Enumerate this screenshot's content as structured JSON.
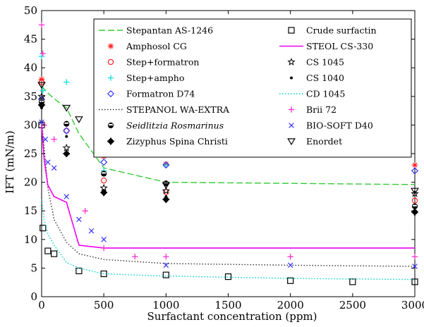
{
  "chart_data": {
    "type": "scatter",
    "xlabel": "Surfactant concentration (ppm)",
    "ylabel": "IFT (mN/m)",
    "xlim": [
      0,
      3000
    ],
    "ylim": [
      0,
      50
    ],
    "xticks": [
      0,
      500,
      1000,
      1500,
      2000,
      2500,
      3000
    ],
    "yticks": [
      0,
      5,
      10,
      15,
      20,
      25,
      30,
      35,
      40,
      45,
      50
    ],
    "grid": false,
    "legend_position": "top-right",
    "series": [
      {
        "name": "Stepantan AS-1246",
        "kind": "line",
        "style": "dashed",
        "color": "#33cc33",
        "x": [
          0,
          20,
          50,
          100,
          200,
          300,
          500,
          1000,
          2000,
          3000
        ],
        "y": [
          36.8,
          36.3,
          35.6,
          34.6,
          33.0,
          28.5,
          22.5,
          20.0,
          19.8,
          19.6
        ]
      },
      {
        "name": "Amphosol CG",
        "kind": "marker",
        "marker": "asterisk",
        "color": "#ff2222",
        "x": [
          0,
          500,
          1000,
          3000
        ],
        "y": [
          38.0,
          24.5,
          23.2,
          23.0
        ]
      },
      {
        "name": "Step+formatron",
        "kind": "marker",
        "marker": "circle-open",
        "color": "#ff2222",
        "x": [
          0,
          200,
          500,
          1000,
          3000
        ],
        "y": [
          37.5,
          29.0,
          20.3,
          18.3,
          16.8
        ]
      },
      {
        "name": "Step+ampho",
        "kind": "marker",
        "marker": "plus",
        "color": "#00dddd",
        "x": [
          0,
          10,
          200,
          500,
          1000
        ],
        "y": [
          42.0,
          36.0,
          37.5,
          22.0,
          23.0
        ]
      },
      {
        "name": "Formatron D74",
        "kind": "marker",
        "marker": "diamond-open",
        "color": "#3333ff",
        "x": [
          0,
          200,
          500,
          1000,
          3000
        ],
        "y": [
          34.5,
          29.0,
          23.5,
          23.0,
          22.0
        ]
      },
      {
        "name": "STEPANOL WA-EXTRA",
        "kind": "line",
        "style": "dotted",
        "color": "#333333",
        "x": [
          0,
          50,
          100,
          200,
          300,
          500,
          1000,
          2000,
          3000
        ],
        "y": [
          31.0,
          19.0,
          13.5,
          9.5,
          7.5,
          6.5,
          5.8,
          5.5,
          5.3
        ]
      },
      {
        "name": "Seidlitzia Rosmarinus",
        "kind": "marker",
        "marker": "half-filled-circle",
        "color": "#000000",
        "italic": true,
        "x": [
          0,
          200,
          500,
          1000,
          3000
        ],
        "y": [
          34.0,
          30.2,
          21.5,
          19.8,
          15.8
        ]
      },
      {
        "name": "Zizyphus Spina Christi",
        "kind": "marker",
        "marker": "filled-club",
        "color": "#000000",
        "x": [
          0,
          200,
          500,
          1000,
          3000
        ],
        "y": [
          33.5,
          25.0,
          18.2,
          17.0,
          14.8
        ]
      },
      {
        "name": "Crude surfactin",
        "kind": "marker",
        "marker": "square-open",
        "color": "#000000",
        "x": [
          0,
          10,
          50,
          100,
          300,
          500,
          1000,
          1500,
          2000,
          2500,
          3000
        ],
        "y": [
          30.0,
          12.0,
          8.0,
          7.5,
          4.5,
          4.0,
          3.8,
          3.5,
          2.8,
          2.6,
          2.6
        ]
      },
      {
        "name": "STEOL CS-330",
        "kind": "line",
        "style": "solid",
        "color": "#ee00ee",
        "x": [
          0,
          20,
          50,
          100,
          200,
          300,
          500,
          1000,
          2000,
          3000
        ],
        "y": [
          30.0,
          24.0,
          19.5,
          17.5,
          16.5,
          9.0,
          8.5,
          8.5,
          8.5,
          8.5
        ]
      },
      {
        "name": "CS 1045",
        "kind": "marker",
        "marker": "star-open",
        "color": "#000000",
        "x": [
          0,
          200,
          500,
          1000,
          3000
        ],
        "y": [
          35.0,
          26.0,
          19.0,
          18.5,
          18.0
        ]
      },
      {
        "name": "CS 1040",
        "kind": "marker",
        "marker": "dot",
        "color": "#000000",
        "x": [
          0,
          200,
          500,
          1000,
          3000
        ],
        "y": [
          33.0,
          28.0,
          18.5,
          17.5,
          15.0
        ]
      },
      {
        "name": "CD 1045",
        "kind": "line",
        "style": "dotted",
        "color": "#00cccc",
        "x": [
          0,
          20,
          50,
          100,
          200,
          300,
          500,
          1000,
          2000,
          3000
        ],
        "y": [
          17.0,
          13.5,
          11.0,
          9.0,
          6.0,
          5.0,
          4.0,
          3.6,
          3.2,
          3.0
        ]
      },
      {
        "name": "Brii 72",
        "kind": "marker",
        "marker": "plus",
        "color": "#ff22cc",
        "x": [
          0,
          10,
          20,
          100,
          350,
          500,
          750,
          1000,
          2000,
          3000
        ],
        "y": [
          47.5,
          42.5,
          30.0,
          27.5,
          15.0,
          8.5,
          7.0,
          7.0,
          7.0,
          7.0
        ]
      },
      {
        "name": "BIO-SOFT D40",
        "kind": "marker",
        "marker": "x",
        "color": "#3333ff",
        "x": [
          0,
          30,
          50,
          100,
          200,
          300,
          400,
          500,
          1000,
          2000,
          3000
        ],
        "y": [
          30.5,
          27.5,
          23.5,
          22.5,
          17.5,
          13.5,
          11.5,
          10.0,
          5.5,
          5.5,
          5.3
        ]
      },
      {
        "name": "Enordet",
        "kind": "marker",
        "marker": "triangle-down-open",
        "color": "#000000",
        "x": [
          0,
          200,
          300,
          1000,
          3000
        ],
        "y": [
          37.0,
          33.0,
          31.0,
          19.5,
          18.5
        ]
      }
    ],
    "legend_left": [
      "Stepantan AS-1246",
      "Amphosol CG",
      "Step+formatron",
      "Step+ampho",
      "Formatron D74",
      "STEPANOL WA-EXTRA",
      "Seidlitzia Rosmarinus",
      "Zizyphus Spina Christi"
    ],
    "legend_right": [
      "Crude surfactin",
      "STEOL CS-330",
      "CS 1045",
      "CS 1040",
      "CD 1045",
      "Brii 72",
      "BIO-SOFT D40",
      "Enordet"
    ]
  }
}
